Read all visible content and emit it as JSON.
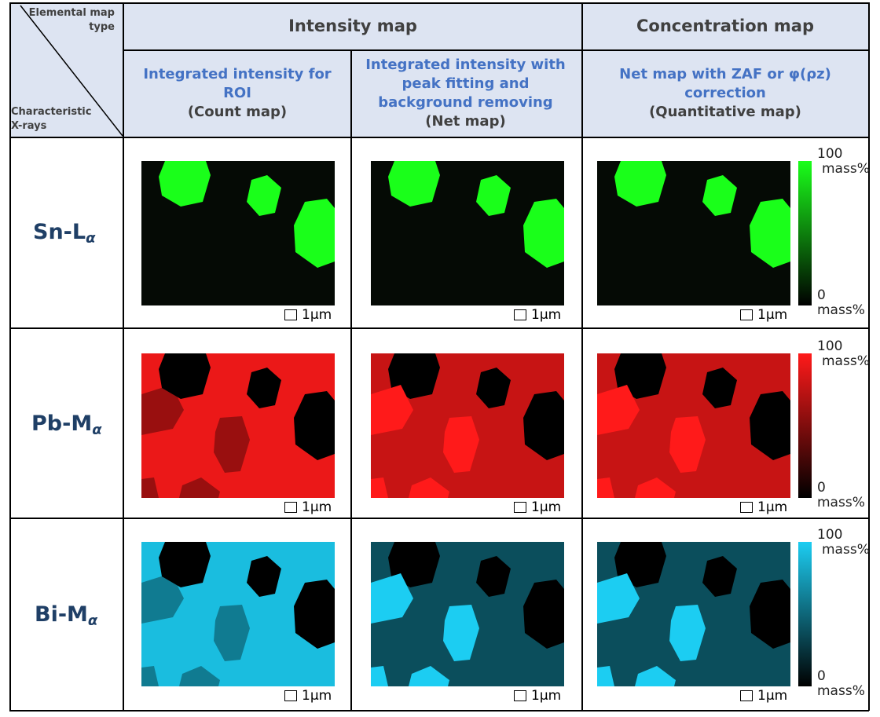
{
  "header": {
    "corner_top": "Elemental map type",
    "corner_bottom": "Characteristic X-rays",
    "intensity_map": "Intensity map",
    "concentration_map": "Concentration map",
    "col1_title": "Integrated intensity for ROI",
    "col1_sub": "(Count map)",
    "col2_title": "Integrated intensity with peak fitting and background removing",
    "col2_sub": "(Net map)",
    "col3_title": "Net map with ZAF or φ(ρz) correction",
    "col3_sub": "(Quantitative map)"
  },
  "rows": [
    {
      "element": "Sn-L",
      "sub": "α",
      "color": "#1aff1a"
    },
    {
      "element": "Pb-M",
      "sub": "α",
      "color": "#ff1a1a"
    },
    {
      "element": "Bi-M",
      "sub": "α",
      "color": "#1ccdf2"
    }
  ],
  "scale_bar": "1μm",
  "colorbar": {
    "max": "100",
    "min": "0",
    "unit": "mass%"
  }
}
